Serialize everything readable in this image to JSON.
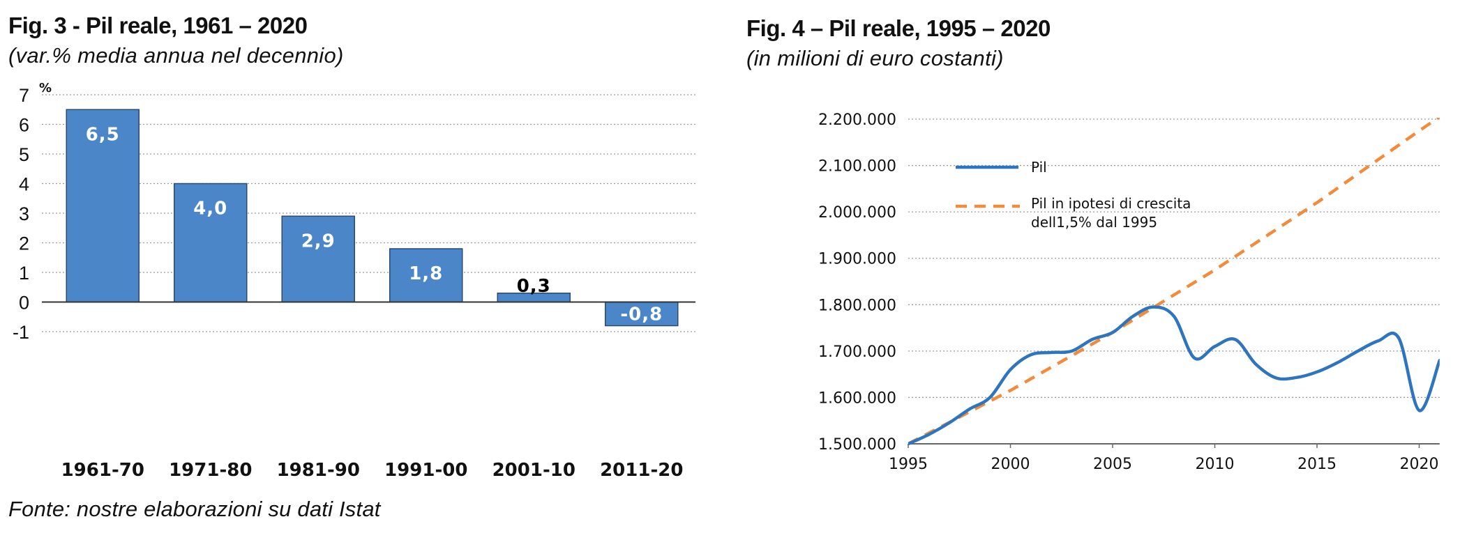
{
  "fig3": {
    "title": "Fig. 3 - Pil reale, 1961 – 2020",
    "subtitle": "(var.% media annua nel decennio)"
  },
  "fig4": {
    "title": "Fig. 4 – Pil reale, 1995 – 2020",
    "subtitle": "(in milioni di euro costanti)"
  },
  "source": "Fonte: nostre elaborazioni su dati Istat",
  "colors": {
    "bar_fill": "#4a86c8",
    "bar_stroke": "#2b4a6f",
    "line_pil": "#2e75c0",
    "line_dashed": "#f28c3c",
    "grid": "#9a9a9a",
    "axis": "#333333"
  },
  "chart_data": [
    {
      "type": "bar",
      "y_unit_label": "%",
      "categories": [
        "1961-70",
        "1971-80",
        "1981-90",
        "1991-00",
        "2001-10",
        "2011-20"
      ],
      "values": [
        6.5,
        4.0,
        2.9,
        1.8,
        0.3,
        -0.8
      ],
      "data_labels": [
        "6,5",
        "4,0",
        "2,9",
        "1,8",
        "0,3",
        "-0,8"
      ],
      "ylim": [
        -1,
        7
      ],
      "yticks": [
        -1,
        0,
        1,
        2,
        3,
        4,
        5,
        6,
        7
      ],
      "grid": true
    },
    {
      "type": "line",
      "xlim": [
        1995,
        2021
      ],
      "xticks": [
        1995,
        2000,
        2005,
        2010,
        2015,
        2020
      ],
      "ylim": [
        1500000,
        2200000
      ],
      "yticks": [
        1500000,
        1600000,
        1700000,
        1800000,
        1900000,
        2000000,
        2100000,
        2200000
      ],
      "ytick_labels": [
        "1.500.000",
        "1.600.000",
        "1.700.000",
        "1.800.000",
        "1.900.000",
        "2.000.000",
        "2.100.000",
        "2.200.000"
      ],
      "grid": true,
      "legend_position": "top-left",
      "series": [
        {
          "name": "Pil",
          "style": "solid",
          "x": [
            1995,
            1996,
            1997,
            1998,
            1999,
            2000,
            2001,
            2002,
            2003,
            2004,
            2005,
            2006,
            2007,
            2008,
            2009,
            2010,
            2011,
            2012,
            2013,
            2014,
            2015,
            2016,
            2017,
            2018,
            2019,
            2020,
            2021
          ],
          "y": [
            1500000,
            1520000,
            1545000,
            1575000,
            1600000,
            1660000,
            1692000,
            1697000,
            1700000,
            1725000,
            1740000,
            1775000,
            1795000,
            1775000,
            1685000,
            1710000,
            1725000,
            1672000,
            1642000,
            1643000,
            1655000,
            1675000,
            1700000,
            1722000,
            1728000,
            1572000,
            1680000
          ]
        },
        {
          "name": "Pil in ipotesi di crescita dell1,5% dal 1995",
          "name_lines": [
            "Pil in ipotesi di crescita",
            "dell1,5% dal 1995"
          ],
          "style": "dashed",
          "x": [
            1995,
            2000,
            2005,
            2010,
            2015,
            2020,
            2021
          ],
          "y": [
            1500000,
            1615000,
            1740000,
            1875000,
            2020000,
            2175000,
            2205000
          ]
        }
      ]
    }
  ]
}
